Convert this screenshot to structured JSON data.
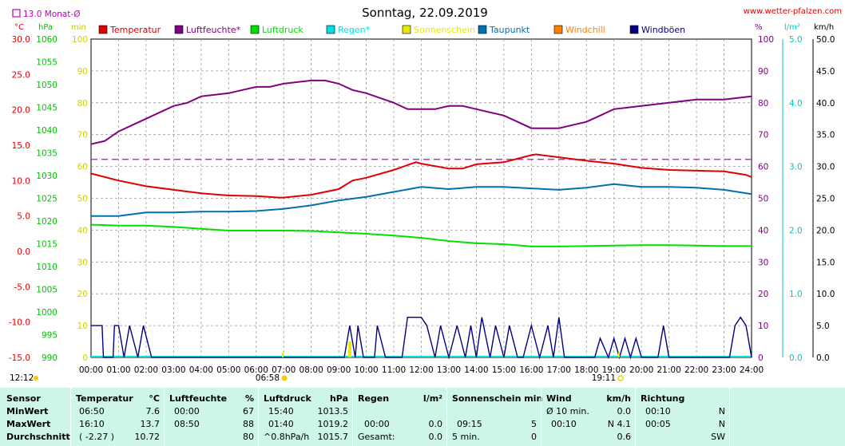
{
  "title": "Sonntag, 22.09.2019",
  "site": "www.wetter-pfalzen.com",
  "monthly_avg_label": "13.0 Monat-Ø",
  "left_units": {
    "temp": "°C",
    "press": "hPa",
    "min": "min"
  },
  "right_units": {
    "pct": "%",
    "lm2": "l/m²",
    "kmh": "km/h"
  },
  "legend": [
    {
      "label": "Temperatur",
      "color": "#e00000"
    },
    {
      "label": "Luftfeuchte*",
      "color": "#800080"
    },
    {
      "label": "Luftdruck",
      "color": "#00e000"
    },
    {
      "label": "Regen*",
      "color": "#00e0e0"
    },
    {
      "label": "Sonnenschein",
      "color": "#e8e800"
    },
    {
      "label": "Taupunkt",
      "color": "#0070b0"
    },
    {
      "label": "Windchill",
      "color": "#ff8000"
    },
    {
      "label": "Windböen",
      "color": "#000080"
    }
  ],
  "marks": {
    "sunrise": "06:58",
    "sunset": "19:11",
    "now": "12:12"
  },
  "chart_data": {
    "type": "line",
    "x_range": [
      "00:00",
      "24:00"
    ],
    "x_ticks": [
      "00:00",
      "01:00",
      "02:00",
      "03:00",
      "04:00",
      "05:00",
      "06:00",
      "07:00",
      "08:00",
      "09:00",
      "10:00",
      "11:00",
      "12:00",
      "13:00",
      "14:00",
      "15:00",
      "16:00",
      "17:00",
      "18:00",
      "19:00",
      "20:00",
      "21:00",
      "22:00",
      "23:00",
      "24:00"
    ],
    "axes": {
      "temperature_c": {
        "ylim": [
          -15,
          30
        ],
        "ticks": [
          "30.0",
          "25.0",
          "20.0",
          "15.0",
          "10.0",
          "5.0",
          "0.0",
          "-5.0",
          "-10.0",
          "-15.0"
        ]
      },
      "pressure_hpa": {
        "ylim": [
          990,
          1060
        ],
        "ticks": [
          "1060",
          "1055",
          "1050",
          "1045",
          "1040",
          "1035",
          "1030",
          "1025",
          "1020",
          "1015",
          "1010",
          "1005",
          "1000",
          "995",
          "990"
        ]
      },
      "sunshine_min": {
        "ylim": [
          0,
          100
        ],
        "ticks": [
          "100",
          "90",
          "80",
          "70",
          "60",
          "50",
          "40",
          "30",
          "20",
          "10",
          "0"
        ]
      },
      "humidity_pct": {
        "ylim": [
          0,
          100
        ],
        "ticks": [
          "100",
          "90",
          "80",
          "70",
          "60",
          "50",
          "40",
          "30",
          "20",
          "10",
          "0"
        ]
      },
      "rain_lm2": {
        "ylim": [
          0,
          5
        ],
        "ticks": [
          "5.0",
          "4.0",
          "3.0",
          "2.0",
          "1.0",
          "0.0"
        ]
      },
      "wind_kmh": {
        "ylim": [
          0,
          50
        ],
        "ticks": [
          "50.0",
          "45.0",
          "40.0",
          "35.0",
          "30.0",
          "25.0",
          "20.0",
          "15.0",
          "10.0",
          "5.0",
          "0.0"
        ]
      }
    },
    "monthly_avg_temp": 13.0,
    "series": [
      {
        "name": "Temperatur",
        "axis": "temperature_c",
        "color": "#e00000",
        "x": [
          0,
          1,
          2,
          3,
          4,
          5,
          6,
          6.83,
          7,
          8,
          9,
          9.5,
          10,
          11,
          11.8,
          12,
          13,
          13.5,
          14,
          15,
          16,
          16.17,
          17,
          18,
          19,
          20,
          21,
          22,
          23,
          23.8,
          24
        ],
        "y": [
          11,
          10,
          9.2,
          8.7,
          8.2,
          7.9,
          7.8,
          7.6,
          7.6,
          8,
          8.8,
          10,
          10.4,
          11.5,
          12.6,
          12.4,
          11.7,
          11.7,
          12.3,
          12.6,
          13.6,
          13.7,
          13.3,
          12.8,
          12.4,
          11.8,
          11.5,
          11.4,
          11.3,
          10.8,
          10.5
        ]
      },
      {
        "name": "Luftfeuchte*",
        "axis": "humidity_pct",
        "color": "#800080",
        "x": [
          0,
          0.5,
          1,
          2,
          2.5,
          3,
          3.5,
          4,
          5,
          5.5,
          6,
          6.5,
          7,
          8,
          8.5,
          9,
          9.5,
          10,
          11,
          11.5,
          12,
          12.5,
          13,
          13.5,
          14,
          14.5,
          15,
          15.5,
          16,
          16.5,
          17,
          17.5,
          18,
          18.5,
          19,
          20,
          21,
          22,
          23,
          24
        ],
        "y": [
          67,
          68,
          71,
          75,
          77,
          79,
          80,
          82,
          83,
          84,
          85,
          85,
          86,
          87,
          87,
          86,
          84,
          83,
          80,
          78,
          78,
          78,
          79,
          79,
          78,
          77,
          76,
          74,
          72,
          72,
          72,
          73,
          74,
          76,
          78,
          79,
          80,
          81,
          81,
          82
        ]
      },
      {
        "name": "Luftdruck",
        "axis": "pressure_hpa",
        "color": "#00e000",
        "x": [
          0,
          1,
          2,
          3,
          4,
          5,
          6,
          7,
          8,
          9,
          10,
          11,
          12,
          13,
          14,
          15,
          16,
          17,
          18,
          19,
          20,
          21,
          22,
          23,
          24
        ],
        "y": [
          1019.2,
          1019,
          1019,
          1018.7,
          1018.3,
          1017.9,
          1017.9,
          1017.9,
          1017.8,
          1017.5,
          1017.2,
          1016.8,
          1016.3,
          1015.6,
          1015.1,
          1014.9,
          1014.4,
          1014.4,
          1014.5,
          1014.6,
          1014.7,
          1014.7,
          1014.6,
          1014.5,
          1014.5
        ]
      },
      {
        "name": "Taupunkt",
        "axis": "temperature_c",
        "color": "#0070b0",
        "x": [
          0,
          1,
          2,
          3,
          4,
          5,
          6,
          7,
          8,
          9,
          10,
          11,
          12,
          13,
          14,
          15,
          16,
          17,
          18,
          19,
          20,
          21,
          22,
          23,
          24
        ],
        "y": [
          5,
          5,
          5.5,
          5.5,
          5.6,
          5.6,
          5.7,
          6,
          6.5,
          7.2,
          7.7,
          8.4,
          9.1,
          8.8,
          9.1,
          9.1,
          8.9,
          8.7,
          9,
          9.5,
          9.1,
          9.1,
          9,
          8.7,
          8.1
        ]
      },
      {
        "name": "Windböen",
        "axis": "wind_kmh",
        "color": "#000080",
        "x": [
          0,
          0.4,
          0.45,
          0.8,
          0.85,
          1,
          1.2,
          1.4,
          1.7,
          1.9,
          2.2,
          2.3,
          9.2,
          9.4,
          9.6,
          9.7,
          9.9,
          10.3,
          10.4,
          10.7,
          11.3,
          11.5,
          12,
          12.2,
          12.5,
          12.7,
          13,
          13.3,
          13.6,
          13.8,
          14,
          14.2,
          14.5,
          14.7,
          15,
          15.2,
          15.5,
          15.7,
          16,
          16.3,
          16.6,
          16.8,
          17,
          17.2,
          17.5,
          17.8,
          18.3,
          18.5,
          18.8,
          19,
          19.2,
          19.4,
          19.6,
          19.8,
          20,
          20.3,
          20.6,
          20.8,
          21,
          21.3,
          23.2,
          23.4,
          23.6,
          23.8,
          24
        ],
        "y": [
          5,
          5,
          0,
          0,
          5,
          5,
          0,
          5,
          0,
          5,
          0,
          0,
          0,
          5,
          0,
          5,
          0,
          0,
          5,
          0,
          0,
          6.3,
          6.3,
          5,
          0,
          5,
          0,
          5,
          0,
          5,
          0,
          6.3,
          0,
          5,
          0,
          5,
          0,
          0,
          5,
          0,
          5,
          0,
          6.3,
          0,
          0,
          0,
          0,
          3,
          0,
          3,
          0,
          3,
          0,
          3,
          0,
          0,
          0,
          5,
          0,
          0,
          0,
          5,
          6.3,
          5,
          0
        ]
      }
    ],
    "sunshine_bars": [
      {
        "x": 9.35,
        "value": 5
      },
      {
        "x": 9.4,
        "value": 5
      }
    ]
  },
  "stats": {
    "headers": {
      "sensor": "Sensor",
      "temp": "Temperatur",
      "temp_unit": "°C",
      "hum": "Luftfeuchte",
      "hum_unit": "%",
      "press": "Luftdruck",
      "press_unit": "hPa",
      "rain": "Regen",
      "rain_unit": "l/m²",
      "sun": "Sonnenschein min",
      "wind": "Wind",
      "wind_unit": "km/h",
      "dir": "Richtung"
    },
    "rows": [
      {
        "label": "MinWert",
        "t_time": "06:50",
        "t_val": "7.6",
        "h_time": "00:00",
        "h_val": "67",
        "p_time": "15:40",
        "p_val": "1013.5",
        "r_time": "",
        "r_val": "",
        "s_time": "",
        "s_val": "",
        "w_time": "Ø 10 min.",
        "w_val": "0.0",
        "d_time": "00:10",
        "d_val": "N"
      },
      {
        "label": "MaxWert",
        "t_time": "16:10",
        "t_val": "13.7",
        "h_time": "08:50",
        "h_val": "88",
        "p_time": "01:40",
        "p_val": "1019.2",
        "r_time": "00:00",
        "r_val": "0.0",
        "s_time": "09:15",
        "s_val": "5",
        "w_time": "00:10",
        "w_val": "N 4.1",
        "d_time": "00:05",
        "d_val": "N"
      },
      {
        "label": "Durchschnitt",
        "t_time": "( -2.27 )",
        "t_val": "10.72",
        "h_time": "",
        "h_val": "80",
        "p_time": "^0.8hPa/h",
        "p_val": "1015.7",
        "r_time": "Gesamt:",
        "r_val": "0.0",
        "s_time": "5 min.",
        "s_val": "0",
        "w_time": "",
        "w_val": "0.6",
        "d_time": "",
        "d_val": "SW"
      }
    ]
  }
}
